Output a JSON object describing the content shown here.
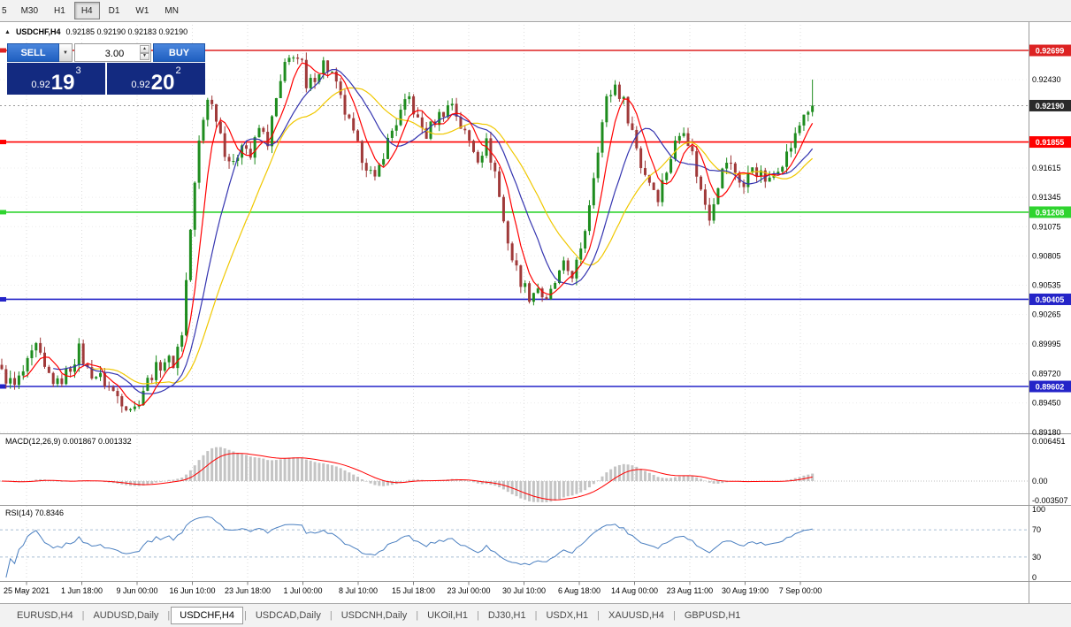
{
  "icons": {
    "collapse": "▲",
    "dropdown": "▼",
    "spin_up": "▲",
    "spin_down": "▼"
  },
  "toolbar": {
    "timeframes": [
      {
        "label": "5",
        "active": false
      },
      {
        "label": "M30",
        "active": false
      },
      {
        "label": "H1",
        "active": false
      },
      {
        "label": "H4",
        "active": true
      },
      {
        "label": "D1",
        "active": false
      },
      {
        "label": "W1",
        "active": false
      },
      {
        "label": "MN",
        "active": false
      }
    ]
  },
  "chart_header": {
    "symbol": "USDCHF,H4",
    "ohlc": "0.92185 0.92190 0.92183 0.92190"
  },
  "trade_panel": {
    "sell_label": "SELL",
    "buy_label": "BUY",
    "volume": "3.00",
    "sell_price": {
      "base": "0.92",
      "big": "19",
      "sup": "3"
    },
    "buy_price": {
      "base": "0.92",
      "big": "20",
      "sup": "2"
    }
  },
  "chart_data": {
    "type": "candlestick",
    "symbol": "USDCHF",
    "timeframe": "H4",
    "price_axis_labels": [
      "0.92430",
      "0.91615",
      "0.91345",
      "0.91075",
      "0.90805",
      "0.90535",
      "0.90265",
      "0.89995",
      "0.89720",
      "0.89450",
      "0.89180"
    ],
    "current_price": {
      "value": "0.92190",
      "color": "#2a2a2a"
    },
    "hlines": [
      {
        "price": 0.92699,
        "label": "0.92699",
        "color": "#dd2222"
      },
      {
        "price": 0.91855,
        "label": "0.91855",
        "color": "#ff0000"
      },
      {
        "price": 0.91208,
        "label": "0.91208",
        "color": "#2fd42f"
      },
      {
        "price": 0.90405,
        "label": "0.90405",
        "color": "#2424c8"
      },
      {
        "price": 0.89602,
        "label": "0.89602",
        "color": "#2424c8"
      }
    ],
    "candles": {
      "count": 190,
      "up_color": "#1e8c1e",
      "down_color": "#a03a3a",
      "last_close": 0.9219,
      "close_path": [
        [
          0,
          0.8972
        ],
        [
          3,
          0.896
        ],
        [
          6,
          0.898
        ],
        [
          8,
          0.8996
        ],
        [
          10,
          0.8975
        ],
        [
          13,
          0.8962
        ],
        [
          16,
          0.8978
        ],
        [
          18,
          0.8994
        ],
        [
          20,
          0.8975
        ],
        [
          23,
          0.8968
        ],
        [
          26,
          0.8955
        ],
        [
          29,
          0.8944
        ],
        [
          31,
          0.894
        ],
        [
          33,
          0.8958
        ],
        [
          35,
          0.8972
        ],
        [
          38,
          0.8985
        ],
        [
          40,
          0.8982
        ],
        [
          42,
          0.901
        ],
        [
          44,
          0.9105
        ],
        [
          46,
          0.9185
        ],
        [
          48,
          0.9228
        ],
        [
          50,
          0.921
        ],
        [
          52,
          0.9178
        ],
        [
          54,
          0.9162
        ],
        [
          56,
          0.9188
        ],
        [
          58,
          0.9172
        ],
        [
          60,
          0.9198
        ],
        [
          62,
          0.9186
        ],
        [
          64,
          0.9224
        ],
        [
          66,
          0.9254
        ],
        [
          68,
          0.9268
        ],
        [
          70,
          0.9256
        ],
        [
          71,
          0.9232
        ],
        [
          73,
          0.9247
        ],
        [
          75,
          0.9258
        ],
        [
          77,
          0.9248
        ],
        [
          79,
          0.9224
        ],
        [
          81,
          0.9202
        ],
        [
          83,
          0.918
        ],
        [
          85,
          0.9165
        ],
        [
          87,
          0.9148
        ],
        [
          89,
          0.9176
        ],
        [
          91,
          0.9196
        ],
        [
          93,
          0.9212
        ],
        [
          95,
          0.9226
        ],
        [
          97,
          0.9204
        ],
        [
          99,
          0.9192
        ],
        [
          101,
          0.9206
        ],
        [
          103,
          0.9214
        ],
        [
          105,
          0.9222
        ],
        [
          107,
          0.92
        ],
        [
          109,
          0.9186
        ],
        [
          111,
          0.9172
        ],
        [
          113,
          0.9184
        ],
        [
          115,
          0.9158
        ],
        [
          117,
          0.9112
        ],
        [
          119,
          0.9078
        ],
        [
          121,
          0.9058
        ],
        [
          123,
          0.9044
        ],
        [
          125,
          0.9052
        ],
        [
          127,
          0.9036
        ],
        [
          129,
          0.9056
        ],
        [
          131,
          0.907
        ],
        [
          133,
          0.9064
        ],
        [
          135,
          0.9082
        ],
        [
          137,
          0.913
        ],
        [
          139,
          0.9182
        ],
        [
          141,
          0.9224
        ],
        [
          143,
          0.9238
        ],
        [
          145,
          0.9222
        ],
        [
          147,
          0.9196
        ],
        [
          149,
          0.9164
        ],
        [
          151,
          0.915
        ],
        [
          153,
          0.9136
        ],
        [
          155,
          0.916
        ],
        [
          157,
          0.9184
        ],
        [
          159,
          0.92
        ],
        [
          161,
          0.9174
        ],
        [
          163,
          0.914
        ],
        [
          165,
          0.9118
        ],
        [
          167,
          0.9148
        ],
        [
          169,
          0.9168
        ],
        [
          171,
          0.9158
        ],
        [
          173,
          0.9144
        ],
        [
          175,
          0.9164
        ],
        [
          177,
          0.9154
        ],
        [
          179,
          0.9148
        ],
        [
          181,
          0.9164
        ],
        [
          183,
          0.9174
        ],
        [
          185,
          0.919
        ],
        [
          187,
          0.9212
        ],
        [
          189,
          0.9219
        ]
      ]
    },
    "moving_averages": [
      {
        "period": 6,
        "color": "#ff0000"
      },
      {
        "period": 13,
        "color": "#3535b0"
      },
      {
        "period": 22,
        "color": "#f0c800"
      }
    ],
    "x_axis_labels": [
      "25 May 2021",
      "1 Jun 18:00",
      "9 Jun 00:00",
      "16 Jun 10:00",
      "23 Jun 18:00",
      "1 Jul 00:00",
      "8 Jul 10:00",
      "15 Jul 18:00",
      "23 Jul 00:00",
      "30 Jul 10:00",
      "6 Aug 18:00",
      "14 Aug 00:00",
      "23 Aug 11:00",
      "30 Aug 19:00",
      "7 Sep 00:00"
    ],
    "indicators": [
      {
        "name": "MACD",
        "label": "MACD(12,26,9) 0.001867 0.001332",
        "axis_labels": [
          "0.006451",
          "0.00",
          "-0.003507"
        ],
        "histogram_color": "#c4c4c4",
        "signal_color": "#ff0000"
      },
      {
        "name": "RSI",
        "label": "RSI(14) 70.8346",
        "axis_labels": [
          "100",
          "70",
          "30",
          "0"
        ],
        "levels": [
          70,
          30
        ],
        "line_color": "#4a7fc0"
      }
    ]
  },
  "tabs": [
    {
      "label": "EURUSD,H4",
      "active": false
    },
    {
      "label": "AUDUSD,Daily",
      "active": false
    },
    {
      "label": "USDCHF,H4",
      "active": true
    },
    {
      "label": "USDCAD,Daily",
      "active": false
    },
    {
      "label": "USDCNH,Daily",
      "active": false
    },
    {
      "label": "UKOil,H1",
      "active": false
    },
    {
      "label": "DJ30,H1",
      "active": false
    },
    {
      "label": "USDX,H1",
      "active": false
    },
    {
      "label": "XAUUSD,H4",
      "active": false
    },
    {
      "label": "GBPUSD,H1",
      "active": false
    }
  ]
}
